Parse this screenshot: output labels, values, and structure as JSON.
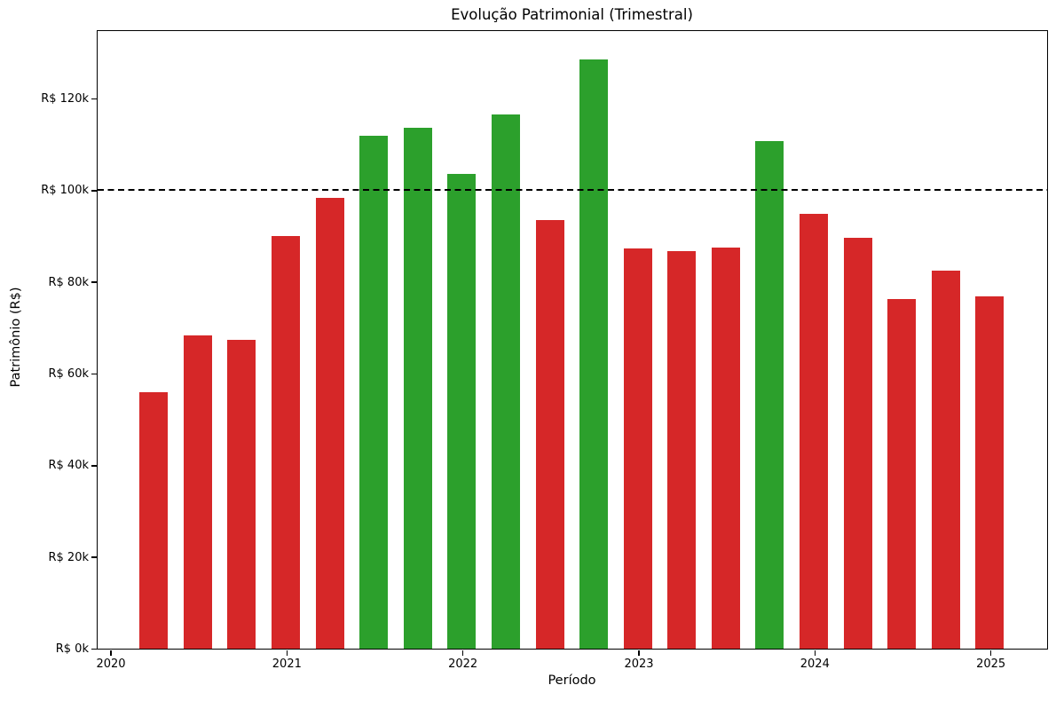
{
  "chart": {
    "title": "Evolução Patrimonial (Trimestral)",
    "xlabel": "Período",
    "ylabel": "Patrimônio (R$)"
  },
  "colors": {
    "bar_above_threshold": "#2ca02c",
    "bar_below_threshold": "#d62728",
    "threshold_line": "#000000",
    "axis": "#000000",
    "background": "#ffffff"
  },
  "chart_data": {
    "type": "bar",
    "title": "Evolução Patrimonial (Trimestral)",
    "xlabel": "Período",
    "ylabel": "Patrimônio (R$)",
    "unit": "thousands of R$",
    "categories": [
      "2020-Q2",
      "2020-Q3",
      "2020-Q4",
      "2021-Q1",
      "2021-Q2",
      "2021-Q3",
      "2021-Q4",
      "2022-Q1",
      "2022-Q2",
      "2022-Q3",
      "2022-Q4",
      "2023-Q1",
      "2023-Q2",
      "2023-Q3",
      "2023-Q4",
      "2024-Q1",
      "2024-Q2",
      "2024-Q3",
      "2024-Q4",
      "2025-Q1"
    ],
    "values": [
      55.9,
      68.4,
      67.3,
      90.0,
      98.3,
      111.9,
      113.6,
      103.5,
      116.5,
      93.4,
      128.5,
      87.2,
      86.7,
      87.4,
      110.8,
      94.9,
      89.6,
      76.2,
      82.5,
      76.9
    ],
    "color_rule": "green if value >= threshold else red",
    "threshold": 100,
    "threshold_line_style": "dashed",
    "ylim": [
      0,
      134.7
    ],
    "ytick_values": [
      0,
      20,
      40,
      60,
      80,
      100,
      120
    ],
    "ytick_labels": [
      "R$ 0k",
      "R$ 20k",
      "R$ 40k",
      "R$ 60k",
      "R$ 80k",
      "R$ 100k",
      "R$ 120k"
    ],
    "xtick_years": [
      2020,
      2021,
      2022,
      2023,
      2024,
      2025
    ],
    "xtick_labels": [
      "2020",
      "2021",
      "2022",
      "2023",
      "2024",
      "2025"
    ],
    "grid": false,
    "legend": null
  }
}
